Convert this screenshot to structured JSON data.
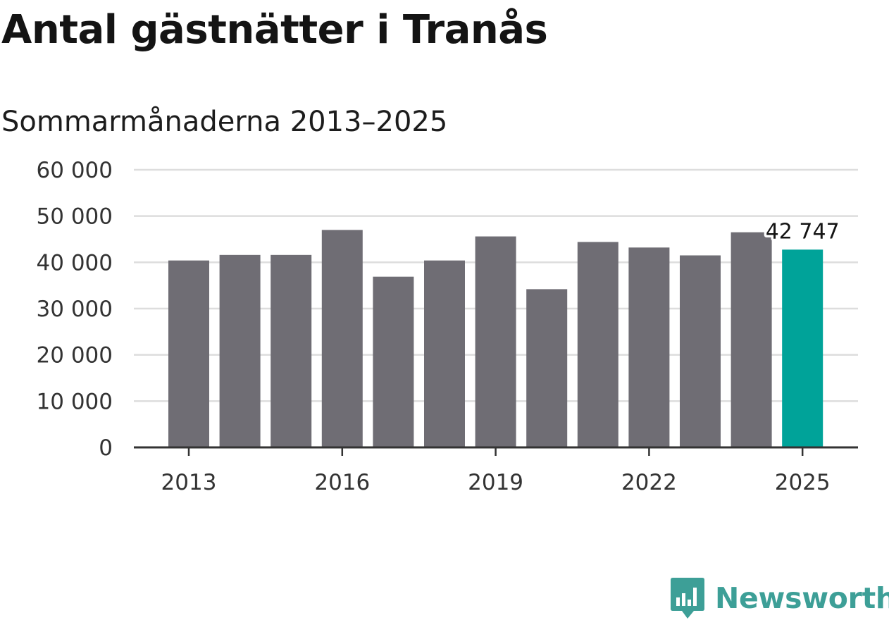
{
  "header": {
    "title": "Antal gästnätter i Tranås",
    "subtitle": "Sommarmånaderna 2013–2025"
  },
  "brand": {
    "name": "Newsworthy",
    "icon": "bar-chart-speech-bubble-icon",
    "color": "#3d9f97"
  },
  "colors": {
    "bar": "#6f6d74",
    "highlight": "#00a399",
    "grid": "#dddddd",
    "axis": "#333333"
  },
  "chart_data": {
    "type": "bar",
    "title": "Antal gästnätter i Tranås",
    "subtitle": "Sommarmånaderna 2013–2025",
    "categories": [
      "2013",
      "2014",
      "2015",
      "2016",
      "2017",
      "2018",
      "2019",
      "2020",
      "2021",
      "2022",
      "2023",
      "2024",
      "2025"
    ],
    "values": [
      40400,
      41600,
      41600,
      47000,
      36900,
      40400,
      45600,
      34200,
      44400,
      43200,
      41500,
      46500,
      42747
    ],
    "highlight_index": 12,
    "data_labels": [
      {
        "index": 12,
        "text": "42 747"
      }
    ],
    "x_tick_labels": [
      "2013",
      "2016",
      "2019",
      "2022",
      "2025"
    ],
    "y_tick_labels": [
      "0",
      "10 000",
      "20 000",
      "30 000",
      "40 000",
      "50 000",
      "60 000"
    ],
    "y_ticks": [
      0,
      10000,
      20000,
      30000,
      40000,
      50000,
      60000
    ],
    "ylim": [
      0,
      60000
    ],
    "grid": true,
    "legend": "none"
  }
}
